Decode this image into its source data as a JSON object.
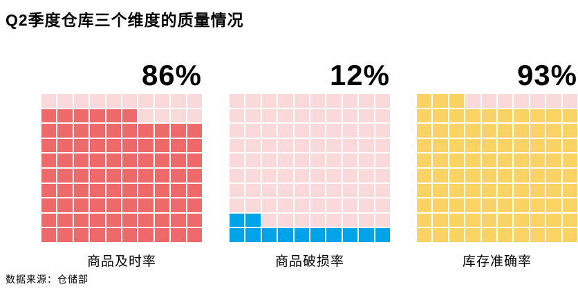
{
  "title": "Q2季度仓库三个维度的质量情况",
  "source_note": "数据来源：仓储部",
  "colors": {
    "red_fill": "#EE6A6A",
    "blue_fill": "#00A3E8",
    "yellow_fill": "#FBD364",
    "empty_fill": "#F9D9DA",
    "text": "#000000",
    "background": "#FFFFFF"
  },
  "chart_data": {
    "type": "waffle",
    "rows": 10,
    "cols": 10,
    "fill_order": "bottom-to-top, left-to-right",
    "charts": [
      {
        "label": "商品及时率",
        "value": 86,
        "percent_label": "86%",
        "fill_color": "#EE6A6A",
        "empty_color": "#F9D9DA"
      },
      {
        "label": "商品破损率",
        "value": 12,
        "percent_label": "12%",
        "fill_color": "#00A3E8",
        "empty_color": "#F9D9DA"
      },
      {
        "label": "库存准确率",
        "value": 93,
        "percent_label": "93%",
        "fill_color": "#FBD364",
        "empty_color": "#F9D9DA"
      }
    ]
  }
}
